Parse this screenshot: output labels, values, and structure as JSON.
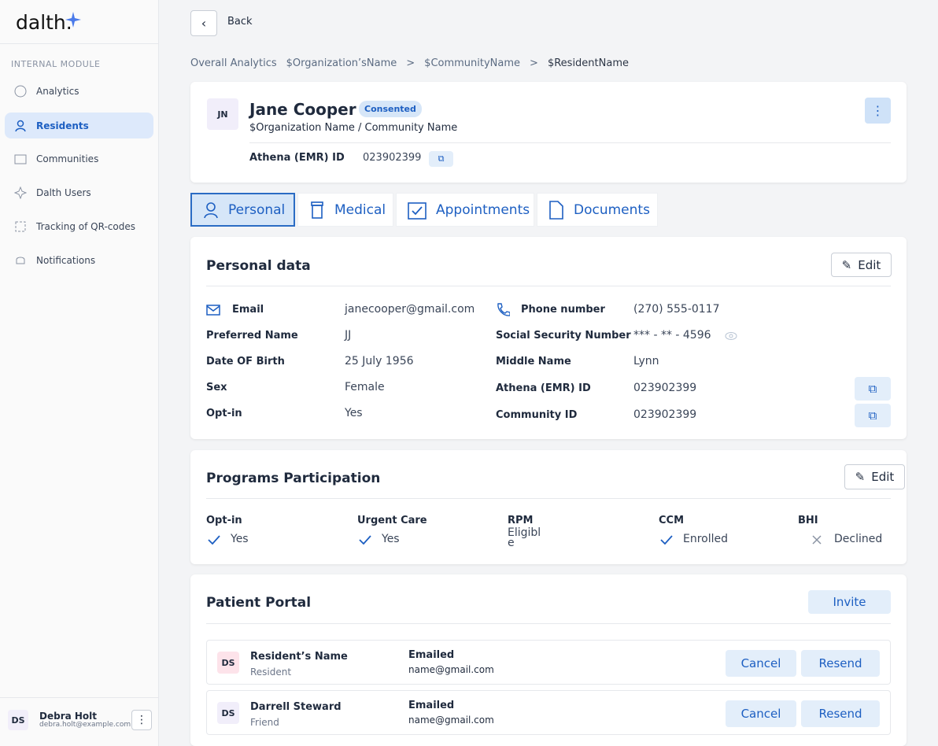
{
  "sidebar": {
    "logo": "dalth.",
    "section": "INTERNAL MODULE",
    "nav": [
      "Analytics",
      "Residents",
      "Communities",
      "Dalth Users",
      "Tracking of QR-codes",
      "Notifications"
    ],
    "user": {
      "initials": "DS",
      "name": "Debra Holt",
      "email": "debra.holt@example.com"
    }
  },
  "header": {
    "back": "Back",
    "breadcrumb": [
      "Overall Analytics",
      "$Organization’sName",
      ">",
      "$CommunityName",
      ">",
      "$ResidentName"
    ]
  },
  "resident": {
    "initials": "JN",
    "name": "Jane Cooper",
    "badge": "Consented",
    "organization": "$Organization Name / Community Name",
    "emr_label": "Athena (EMR) ID",
    "emr_value": "023902399"
  },
  "tabs": [
    "Personal",
    "Medical",
    "Appointments",
    "Documents"
  ],
  "personal": {
    "title": "Personal data",
    "edit": "Edit",
    "left": [
      [
        "Email",
        "janecooper@gmail.com"
      ],
      [
        "Preferred Name",
        "JJ"
      ],
      [
        "Date OF Birth",
        "25 July 1956"
      ],
      [
        "Sex",
        "Female"
      ],
      [
        "Opt-in",
        "Yes"
      ]
    ],
    "right": [
      [
        "Phone number",
        "(270) 555-0117"
      ],
      [
        "Social Security Number",
        "*** - ** - 4596"
      ],
      [
        "Middle Name",
        "Lynn"
      ],
      [
        "Athena (EMR) ID",
        "023902399"
      ],
      [
        "Community ID",
        "023902399"
      ]
    ]
  },
  "programs": {
    "title": "Programs Participation",
    "edit": "Edit",
    "items": [
      [
        "Opt-in",
        "Yes"
      ],
      [
        "Urgent Care",
        "Yes"
      ],
      [
        "RPM",
        "Eligible"
      ],
      [
        "CCM",
        "Enrolled"
      ],
      [
        "BHI",
        "Declined"
      ]
    ]
  },
  "portal": {
    "title": "Patient Portal",
    "invite": "Invite",
    "rows": [
      [
        "DS",
        "Resident’s Name",
        "Resident",
        "Emailed",
        "name@gmail.com",
        "Cancel",
        "Resend"
      ],
      [
        "DS",
        "Darrell Steward",
        "Friend",
        "Emailed",
        "name@gmail.com",
        "Cancel",
        "Resend"
      ]
    ]
  }
}
